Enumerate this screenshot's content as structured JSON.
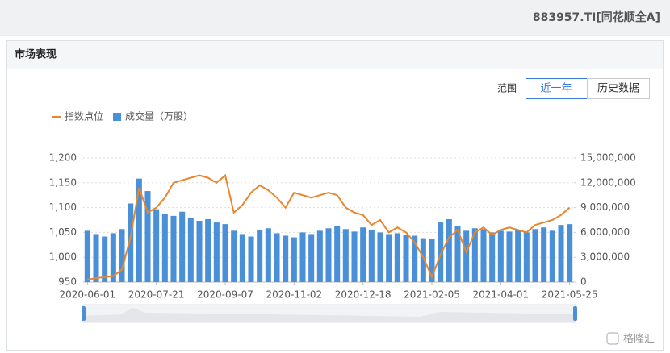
{
  "header": {
    "title": "883957.TI[同花顺全A]"
  },
  "panel": {
    "title": "市场表现",
    "range_label": "范围",
    "buttons": [
      "近一年",
      "历史数据"
    ]
  },
  "watermark": "格隆汇",
  "chart_data": {
    "type": "combo",
    "categories": [
      "2020-06-01",
      null,
      null,
      null,
      null,
      null,
      null,
      null,
      "2020-07-21",
      null,
      null,
      null,
      null,
      null,
      null,
      null,
      "2020-09-07",
      null,
      null,
      null,
      null,
      null,
      null,
      null,
      "2020-11-02",
      null,
      null,
      null,
      null,
      null,
      null,
      null,
      "2020-12-18",
      null,
      null,
      null,
      null,
      null,
      null,
      null,
      "2021-02-05",
      null,
      null,
      null,
      null,
      null,
      null,
      null,
      "2021-04-01",
      null,
      null,
      null,
      null,
      null,
      null,
      null,
      "2021-05-25"
    ],
    "series": [
      {
        "name": "指数点位",
        "type": "line",
        "color": "#e8862e",
        "values": [
          955,
          958,
          960,
          962,
          975,
          1040,
          1140,
          1090,
          1100,
          1120,
          1150,
          1155,
          1160,
          1165,
          1160,
          1150,
          1165,
          1090,
          1105,
          1130,
          1145,
          1135,
          1120,
          1100,
          1130,
          1125,
          1120,
          1125,
          1130,
          1125,
          1100,
          1090,
          1085,
          1065,
          1075,
          1050,
          1060,
          1050,
          1030,
          1000,
          960,
          1005,
          1040,
          1055,
          1010,
          1050,
          1060,
          1045,
          1055,
          1060,
          1055,
          1050,
          1065,
          1070,
          1075,
          1085,
          1100
        ]
      },
      {
        "name": "成交量（万股）",
        "type": "bar",
        "color": "#4a90d9",
        "axis": "y2",
        "values": [
          6200000,
          5800000,
          5500000,
          5900000,
          6400000,
          9500000,
          12500000,
          11000000,
          8800000,
          8200000,
          8000000,
          8500000,
          7800000,
          7400000,
          7600000,
          7200000,
          7000000,
          6200000,
          5800000,
          5500000,
          6300000,
          6500000,
          5900000,
          5600000,
          5400000,
          6000000,
          5800000,
          6200000,
          6500000,
          6800000,
          6400000,
          6100000,
          6600000,
          6300000,
          6000000,
          5800000,
          5900000,
          5700000,
          5600000,
          5300000,
          5200000,
          7200000,
          7600000,
          6800000,
          6200000,
          6500000,
          6400000,
          6000000,
          6200000,
          6100000,
          6300000,
          6000000,
          6400000,
          6600000,
          6200000,
          6900000,
          7000000
        ]
      }
    ],
    "ylim": [
      950,
      1200
    ],
    "yticks": [
      950,
      {
        "value": 1000,
        "label": "1,000"
      },
      {
        "value": 1050,
        "label": "1,050"
      },
      {
        "value": 1100,
        "label": "1,100"
      },
      {
        "value": 1150,
        "label": "1,150"
      },
      {
        "value": 1200,
        "label": "1,200"
      }
    ],
    "y2lim": [
      0,
      15000000
    ],
    "y2ticks": [
      0,
      {
        "value": 3000000,
        "label": "3,000,000"
      },
      {
        "value": 6000000,
        "label": "6,000,000"
      },
      {
        "value": 9000000,
        "label": "9,000,000"
      },
      {
        "value": 12000000,
        "label": "12,000,000"
      },
      {
        "value": 15000000,
        "label": "15,000,000"
      }
    ],
    "grid": true,
    "legend": "top-left"
  }
}
